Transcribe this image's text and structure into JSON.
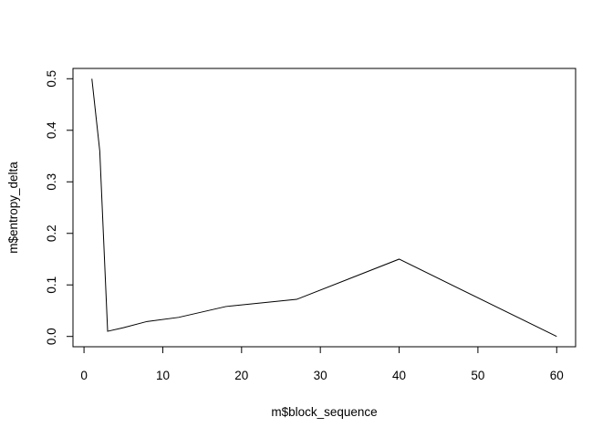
{
  "chart_data": {
    "type": "line",
    "title": "",
    "xlabel": "m$block_sequence",
    "ylabel": "m$entropy_delta",
    "xlim": [
      -1.4,
      62.4
    ],
    "ylim": [
      -0.02,
      0.52
    ],
    "xticks": [
      0,
      10,
      20,
      30,
      40,
      50,
      60
    ],
    "xtick_labels": [
      "0",
      "10",
      "20",
      "30",
      "40",
      "50",
      "60"
    ],
    "yticks": [
      0.0,
      0.1,
      0.2,
      0.3,
      0.4,
      0.5
    ],
    "ytick_labels": [
      "0.0",
      "0.1",
      "0.2",
      "0.3",
      "0.4",
      "0.5"
    ],
    "grid": false,
    "legend": "none",
    "line_color": "#000000",
    "series": [
      {
        "x": [
          1,
          2,
          3,
          5,
          8,
          12,
          18,
          27,
          40,
          60
        ],
        "y": [
          0.5,
          0.36,
          0.01,
          0.017,
          0.029,
          0.037,
          0.058,
          0.072,
          0.15,
          0.0
        ]
      }
    ]
  }
}
